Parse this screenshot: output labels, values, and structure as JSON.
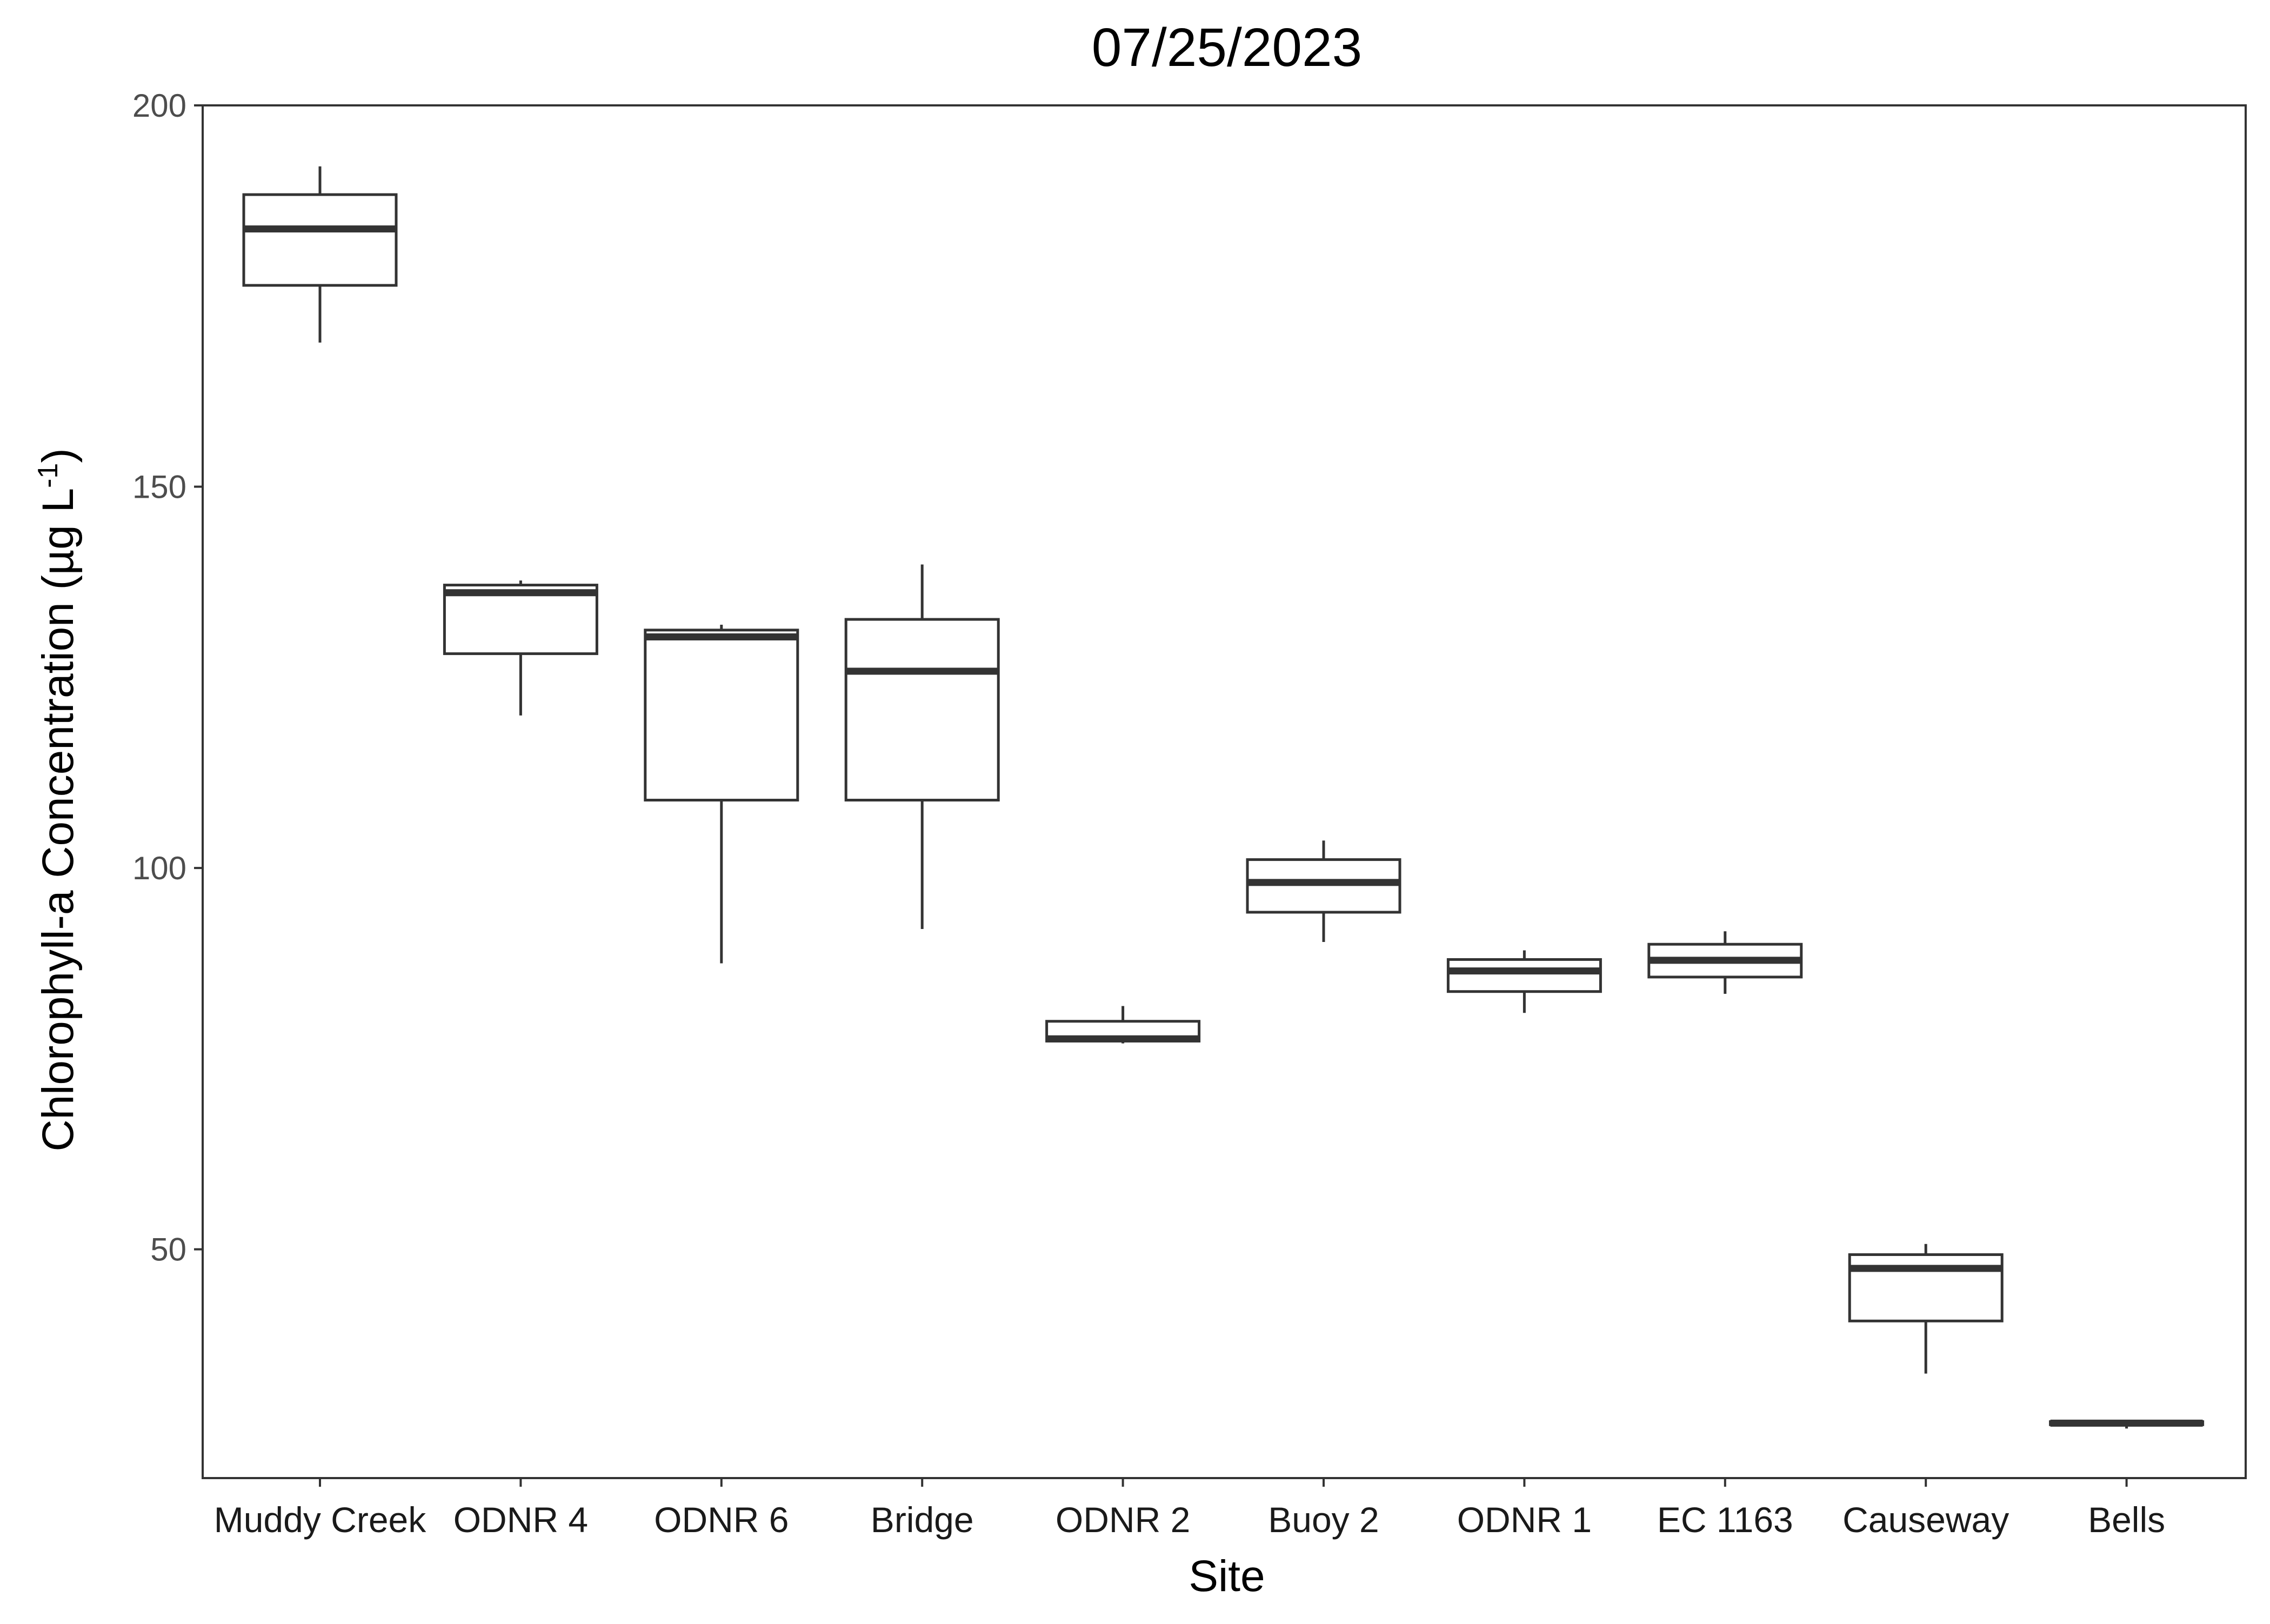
{
  "chart_data": {
    "type": "box",
    "title": "07/25/2023",
    "xlabel": "Site",
    "ylabel": "Chlorophyll-a Concentration (µg L⁻¹)",
    "ylabel_parts": {
      "main": "Chlorophyll-a Concentration (µg L",
      "sup": "-1",
      "close": ")"
    },
    "ylim": [
      20,
      200
    ],
    "yticks": [
      50,
      100,
      150,
      200
    ],
    "grid": false,
    "legend": "none",
    "categories": [
      "Muddy Creek",
      "ODNR 4",
      "ODNR 6",
      "Bridge",
      "ODNR 2",
      "Buoy 2",
      "ODNR 1",
      "EC 1163",
      "Causeway",
      "Bells"
    ],
    "boxes": [
      {
        "site": "Muddy Creek",
        "min": 168.9,
        "q1": 176.4,
        "median": 183.8,
        "q3": 188.3,
        "max": 192.0
      },
      {
        "site": "ODNR 4",
        "min": 120.0,
        "q1": 128.1,
        "median": 136.1,
        "q3": 137.1,
        "max": 137.7
      },
      {
        "site": "ODNR 6",
        "min": 87.5,
        "q1": 108.9,
        "median": 130.3,
        "q3": 131.2,
        "max": 131.9
      },
      {
        "site": "Bridge",
        "min": 92.0,
        "q1": 108.9,
        "median": 125.8,
        "q3": 132.6,
        "max": 139.8
      },
      {
        "site": "ODNR 2",
        "min": 77.0,
        "q1": 77.3,
        "median": 77.6,
        "q3": 79.9,
        "max": 81.9
      },
      {
        "site": "Buoy 2",
        "min": 90.3,
        "q1": 94.2,
        "median": 98.1,
        "q3": 101.1,
        "max": 103.6
      },
      {
        "site": "ODNR 1",
        "min": 81.0,
        "q1": 83.8,
        "median": 86.5,
        "q3": 88.0,
        "max": 89.2
      },
      {
        "site": "EC 1163",
        "min": 83.5,
        "q1": 85.7,
        "median": 87.9,
        "q3": 90.0,
        "max": 91.7
      },
      {
        "site": "Causeway",
        "min": 33.7,
        "q1": 40.6,
        "median": 47.5,
        "q3": 49.3,
        "max": 50.7
      },
      {
        "site": "Bells",
        "min": 26.5,
        "q1": 27.0,
        "median": 27.2,
        "q3": 27.4,
        "max": 27.5
      }
    ],
    "colors": {
      "box_line": "#333333",
      "panel_border": "#333333",
      "background": "#ffffff"
    }
  }
}
